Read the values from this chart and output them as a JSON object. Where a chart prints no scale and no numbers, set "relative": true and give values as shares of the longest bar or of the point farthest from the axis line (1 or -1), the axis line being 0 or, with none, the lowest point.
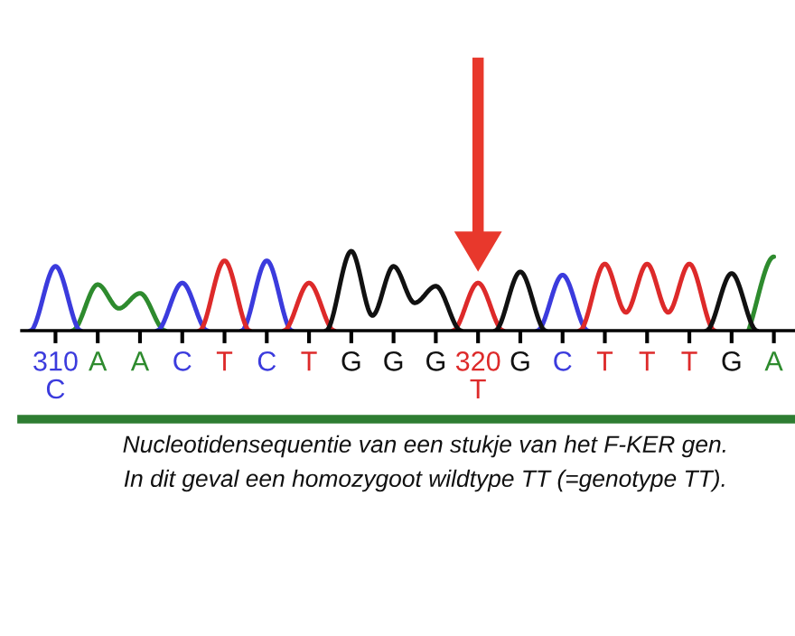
{
  "chart_data": {
    "type": "line",
    "relative": true,
    "series": [
      {
        "color": "#2e8b2e",
        "x": [
          310.4,
          311,
          311.5,
          312,
          312.6,
          320,
          326.4,
          327
        ],
        "values": [
          0,
          0.58,
          0.28,
          0.47,
          0,
          null,
          0,
          0.93
        ]
      },
      {
        "color": "#3b3bdd",
        "x": [
          309.4,
          310,
          310.6,
          311,
          312.4,
          313,
          313.6,
          314,
          314.4,
          315,
          315.6,
          318,
          321.4,
          322,
          322.6
        ],
        "values": [
          0,
          0.81,
          0,
          null,
          0,
          0.6,
          0,
          null,
          0,
          0.88,
          0,
          null,
          0,
          0.7,
          0
        ]
      },
      {
        "color": "#dd2a2a",
        "x": [
          313.4,
          314,
          314.6,
          315,
          315.4,
          316,
          316.6,
          318,
          319.4,
          320,
          320.6,
          321,
          322.4,
          323,
          323.5,
          324,
          324.5,
          325,
          325.6
        ],
        "values": [
          0,
          0.88,
          0,
          null,
          0,
          0.6,
          0,
          null,
          0,
          0.6,
          0,
          null,
          0,
          0.84,
          0.23,
          0.84,
          0.23,
          0.84,
          0
        ]
      },
      {
        "color": "#111111",
        "x": [
          316.4,
          317,
          317.5,
          318,
          318.5,
          319,
          319.6,
          320,
          320.4,
          321,
          321.6,
          323,
          325.4,
          326,
          326.6
        ],
        "values": [
          0,
          1.0,
          0.19,
          0.81,
          0.35,
          0.56,
          0,
          null,
          0,
          0.74,
          0,
          null,
          0,
          0.72,
          0
        ]
      }
    ],
    "xlim": [
      309.2,
      327.5
    ],
    "xticks": [
      {
        "value": 310,
        "label": "310\nC"
      },
      {
        "value": 311,
        "label": "A"
      },
      {
        "value": 312,
        "label": "A"
      },
      {
        "value": 313,
        "label": "C"
      },
      {
        "value": 314,
        "label": "T"
      },
      {
        "value": 315,
        "label": "C"
      },
      {
        "value": 316,
        "label": "T"
      },
      {
        "value": 317,
        "label": "G"
      },
      {
        "value": 318,
        "label": "G"
      },
      {
        "value": 319,
        "label": "G"
      },
      {
        "value": 320,
        "label": "320\nT"
      },
      {
        "value": 321,
        "label": "G"
      },
      {
        "value": 322,
        "label": "C"
      },
      {
        "value": 323,
        "label": "T"
      },
      {
        "value": 324,
        "label": "T"
      },
      {
        "value": 325,
        "label": "T"
      },
      {
        "value": 326,
        "label": "G"
      },
      {
        "value": 327,
        "label": "A"
      }
    ],
    "grid": false,
    "legend": false,
    "marker": "none",
    "line_style": "solid",
    "annotations": [
      "Nucleotidensequentie van een stukje van het F-KER gen.",
      "In dit geval een homozygoot wildtype TT (=genotype TT)."
    ]
  }
}
